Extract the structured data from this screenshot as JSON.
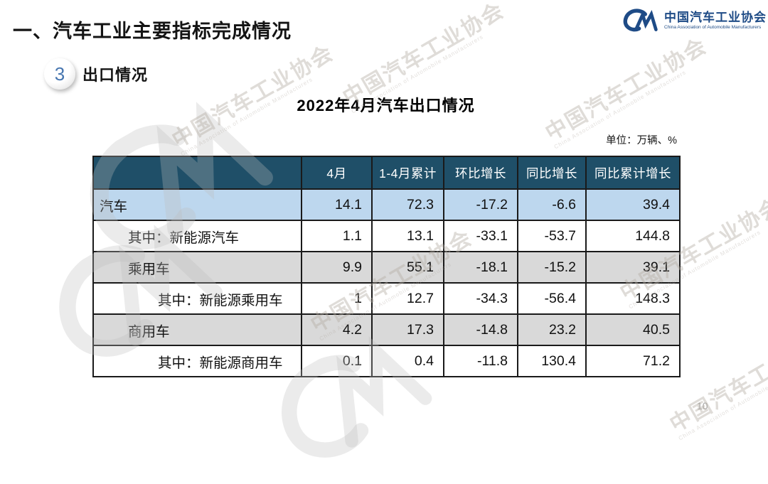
{
  "page": {
    "section_title": "一、汽车工业主要指标完成情况",
    "page_number": "10"
  },
  "logo": {
    "name_cn": "中国汽车工业协会",
    "name_en": "China Association of Automobile Manufacturers",
    "brand_color": "#1e4b86"
  },
  "badge": {
    "number": "3",
    "label": "出口情况"
  },
  "table": {
    "title": "2022年4月汽车出口情况",
    "unit_label": "单位：万辆、%",
    "header_bg": "#1f4f68",
    "row_highlight_blue": "#bdd7ee",
    "row_highlight_gray": "#d9d9d9",
    "columns": [
      "",
      "4月",
      "1-4月累计",
      "环比增长",
      "同比增长",
      "同比累计增长"
    ],
    "rows": [
      {
        "label": "汽车",
        "indent": 0,
        "bg": "#bdd7ee",
        "values": [
          "14.1",
          "72.3",
          "-17.2",
          "-6.6",
          "39.4"
        ]
      },
      {
        "label": "其中：新能源汽车",
        "indent": 1,
        "bg": "#ffffff",
        "values": [
          "1.1",
          "13.1",
          "-33.1",
          "-53.7",
          "144.8"
        ]
      },
      {
        "label": "乘用车",
        "indent": 1,
        "bg": "#d9d9d9",
        "values": [
          "9.9",
          "55.1",
          "-18.1",
          "-15.2",
          "39.1"
        ]
      },
      {
        "label": "其中：新能源乘用车",
        "indent": 2,
        "bg": "#ffffff",
        "values": [
          "1",
          "12.7",
          "-34.3",
          "-56.4",
          "148.3"
        ]
      },
      {
        "label": "商用车",
        "indent": 1,
        "bg": "#d9d9d9",
        "values": [
          "4.2",
          "17.3",
          "-14.8",
          "23.2",
          "40.5"
        ]
      },
      {
        "label": "其中：新能源商用车",
        "indent": 2,
        "bg": "#ffffff",
        "values": [
          "0.1",
          "0.4",
          "-11.8",
          "130.4",
          "71.2"
        ]
      }
    ]
  },
  "watermark": {
    "text": "中国汽车工业协会",
    "subtext": "China Association of Automobile Manufacturers"
  }
}
